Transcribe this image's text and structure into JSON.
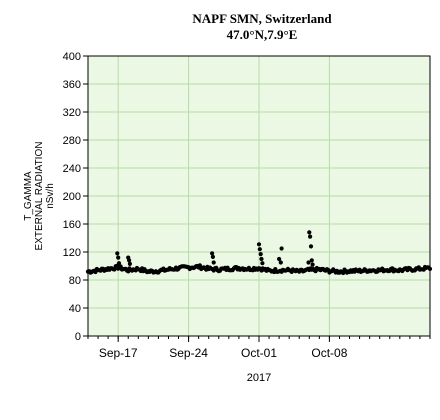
{
  "chart_data": {
    "type": "scatter",
    "title": "NAPF SMN, Switzerland",
    "subtitle": "47.0°N,7.9°E",
    "ylabel_lines": [
      "T_GAMMA",
      "EXTERNAL RADIATION",
      "nSv/h"
    ],
    "xlabel": "2017",
    "x_range": [
      "2017-09-14",
      "2017-10-18"
    ],
    "ylim": [
      0,
      400
    ],
    "y_ticks": [
      0,
      40,
      80,
      120,
      160,
      200,
      240,
      280,
      320,
      360,
      400
    ],
    "x_ticks": [
      {
        "date": "2017-09-17",
        "label": "Sep-17"
      },
      {
        "date": "2017-09-24",
        "label": "Sep-24"
      },
      {
        "date": "2017-10-01",
        "label": "Oct-01"
      },
      {
        "date": "2017-10-08",
        "label": "Oct-08"
      }
    ],
    "grid": true,
    "background_color": "#eaf8e4",
    "grid_color": "#b8dca8",
    "marker_color": "#000000",
    "series": [
      {
        "baseline_points": [
          [
            "2017-09-14",
            92
          ],
          [
            "2017-09-15",
            94
          ],
          [
            "2017-09-16",
            96
          ],
          [
            "2017-09-17",
            98
          ],
          [
            "2017-09-18",
            94
          ],
          [
            "2017-09-19",
            96
          ],
          [
            "2017-09-20",
            92
          ],
          [
            "2017-09-21",
            93
          ],
          [
            "2017-09-22",
            95
          ],
          [
            "2017-09-23",
            97
          ],
          [
            "2017-09-24",
            98
          ],
          [
            "2017-09-25",
            99
          ],
          [
            "2017-09-26",
            96
          ],
          [
            "2017-09-27",
            95
          ],
          [
            "2017-09-28",
            96
          ],
          [
            "2017-09-29",
            97
          ],
          [
            "2017-09-30",
            96
          ],
          [
            "2017-10-01",
            97
          ],
          [
            "2017-10-02",
            93
          ],
          [
            "2017-10-03",
            94
          ],
          [
            "2017-10-04",
            94
          ],
          [
            "2017-10-05",
            92
          ],
          [
            "2017-10-06",
            94
          ],
          [
            "2017-10-07",
            95
          ],
          [
            "2017-10-08",
            93
          ],
          [
            "2017-10-09",
            92
          ],
          [
            "2017-10-10",
            93
          ],
          [
            "2017-10-11",
            93
          ],
          [
            "2017-10-12",
            94
          ],
          [
            "2017-10-13",
            94
          ],
          [
            "2017-10-14",
            95
          ],
          [
            "2017-10-15",
            94
          ],
          [
            "2017-10-16",
            95
          ],
          [
            "2017-10-17",
            96
          ],
          [
            "2017-10-18",
            97
          ]
        ],
        "spikes": [
          [
            "2017-09-16T22:00",
            118
          ],
          [
            "2017-09-17T00:00",
            112
          ],
          [
            "2017-09-17T02:00",
            104
          ],
          [
            "2017-09-18T00:00",
            112
          ],
          [
            "2017-09-18T02:00",
            108
          ],
          [
            "2017-09-18T04:00",
            103
          ],
          [
            "2017-09-26T08:00",
            118
          ],
          [
            "2017-09-26T10:00",
            113
          ],
          [
            "2017-09-26T12:00",
            105
          ],
          [
            "2017-10-01T00:00",
            131
          ],
          [
            "2017-10-01T02:00",
            124
          ],
          [
            "2017-10-01T04:00",
            117
          ],
          [
            "2017-10-01T06:00",
            110
          ],
          [
            "2017-10-01T08:00",
            104
          ],
          [
            "2017-10-03T06:00",
            125
          ],
          [
            "2017-10-03T00:00",
            110
          ],
          [
            "2017-10-03T04:00",
            105
          ],
          [
            "2017-10-06T00:00",
            148
          ],
          [
            "2017-10-06T02:00",
            142
          ],
          [
            "2017-10-06T04:00",
            128
          ],
          [
            "2017-10-05T22:00",
            105
          ],
          [
            "2017-10-06T06:00",
            108
          ],
          [
            "2017-10-06T08:00",
            102
          ]
        ]
      }
    ]
  }
}
